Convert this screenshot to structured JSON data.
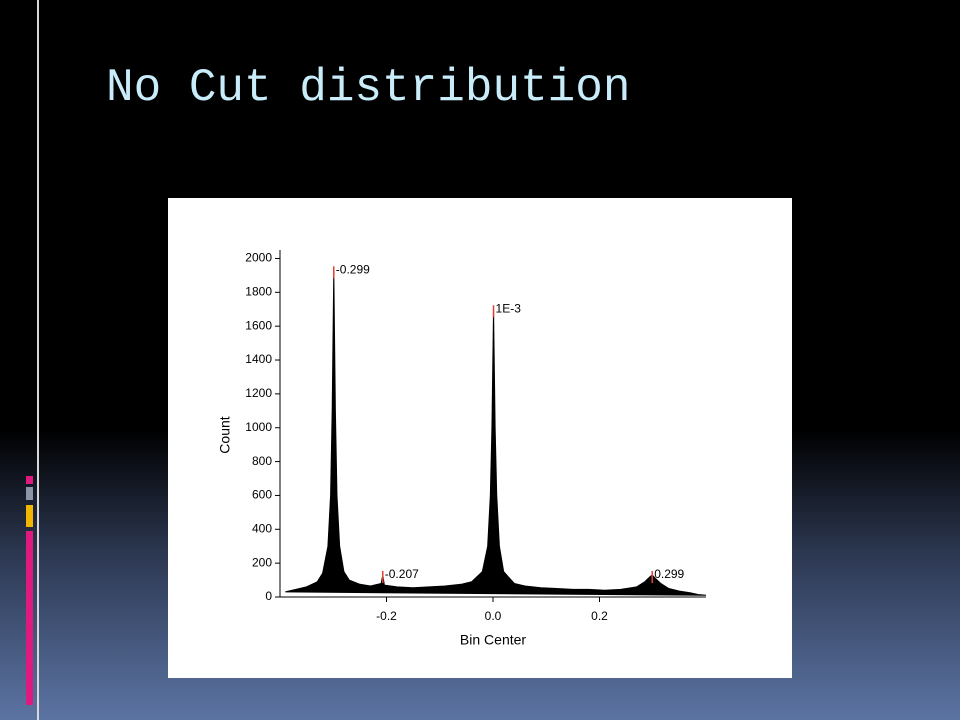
{
  "slide": {
    "title": "No Cut distribution"
  },
  "chart_data": {
    "type": "area",
    "xlabel": "Bin Center",
    "ylabel": "Count",
    "color": "#000000",
    "x": [
      -0.39,
      -0.37,
      -0.35,
      -0.33,
      -0.32,
      -0.31,
      -0.305,
      -0.302,
      -0.299,
      -0.296,
      -0.293,
      -0.288,
      -0.28,
      -0.27,
      -0.25,
      -0.23,
      -0.21,
      -0.207,
      -0.204,
      -0.18,
      -0.15,
      -0.12,
      -0.09,
      -0.06,
      -0.04,
      -0.02,
      -0.01,
      -0.005,
      -0.002,
      0.001,
      0.004,
      0.007,
      0.012,
      0.02,
      0.04,
      0.06,
      0.09,
      0.12,
      0.15,
      0.18,
      0.21,
      0.24,
      0.27,
      0.285,
      0.295,
      0.299,
      0.305,
      0.315,
      0.33,
      0.35,
      0.37,
      0.385,
      0.4
    ],
    "values": [
      30,
      45,
      60,
      90,
      140,
      300,
      600,
      1100,
      1930,
      1100,
      600,
      300,
      150,
      100,
      75,
      65,
      80,
      130,
      70,
      60,
      55,
      60,
      65,
      75,
      90,
      150,
      300,
      600,
      1000,
      1700,
      1000,
      600,
      300,
      150,
      80,
      65,
      55,
      50,
      45,
      45,
      40,
      45,
      60,
      90,
      120,
      130,
      110,
      80,
      50,
      35,
      25,
      15,
      10
    ],
    "xlim": [
      -0.4,
      0.4
    ],
    "ylim": [
      0,
      2050
    ],
    "xticks": [
      -0.2,
      {
        "value": 0,
        "label": "0.0"
      },
      0.2
    ],
    "yticks": [
      0,
      200,
      400,
      600,
      800,
      1000,
      1200,
      1400,
      1600,
      1800,
      2000
    ],
    "annotations": [
      {
        "label": "-0.299",
        "x": -0.299,
        "y": 1930
      },
      {
        "label": "-0.207",
        "x": -0.207,
        "y": 130
      },
      {
        "label": "1E-3",
        "x": 0.001,
        "y": 1700
      },
      {
        "label": "0.299",
        "x": 0.299,
        "y": 130
      }
    ]
  }
}
